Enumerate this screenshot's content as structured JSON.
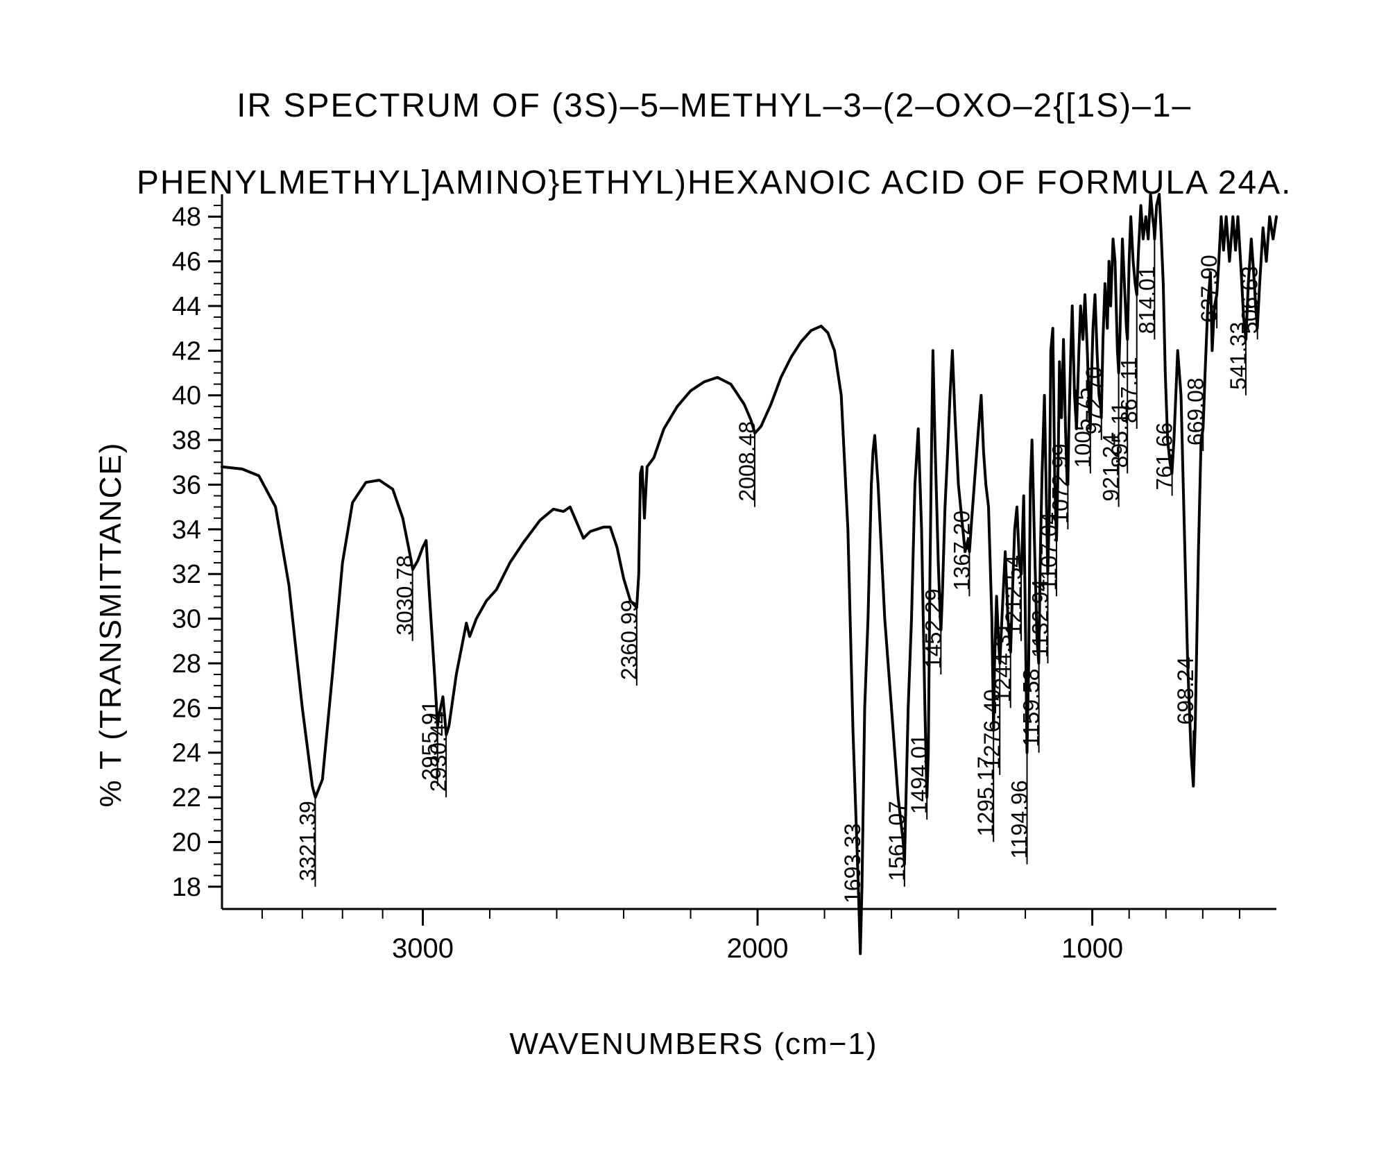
{
  "title_line1": "IR SPECTRUM OF (3S)–5–METHYL–3–(2–OXO–2{[1S)–1–",
  "title_line2": "PHENYLMETHYL]AMINO}ETHYL)HEXANOIC ACID OF FORMULA 24A.",
  "ylabel": "% T (TRANSMITTANCE)",
  "xlabel": "WAVENUMBERS (cm−1)",
  "chart": {
    "type": "line",
    "background_color": "#ffffff",
    "line_color": "#000000",
    "line_width": 4,
    "xlim": [
      3600,
      450
    ],
    "ylim": [
      17,
      49
    ],
    "yticks": [
      18,
      20,
      22,
      24,
      26,
      28,
      30,
      32,
      34,
      36,
      38,
      40,
      42,
      44,
      46,
      48
    ],
    "xticks": [
      3000,
      2000,
      1000
    ],
    "ytick_label_fontsize": 38,
    "xtick_label_fontsize": 40,
    "peak_label_fontsize": 32,
    "minor_tick_count_y": 3,
    "minor_tick_count_x": 4,
    "spectrum": [
      [
        3600,
        36.8
      ],
      [
        3540,
        36.7
      ],
      [
        3490,
        36.4
      ],
      [
        3440,
        35.0
      ],
      [
        3400,
        31.5
      ],
      [
        3360,
        26.0
      ],
      [
        3330,
        22.5
      ],
      [
        3321,
        22.0
      ],
      [
        3300,
        22.8
      ],
      [
        3270,
        27.5
      ],
      [
        3240,
        32.5
      ],
      [
        3210,
        35.2
      ],
      [
        3170,
        36.1
      ],
      [
        3130,
        36.2
      ],
      [
        3090,
        35.8
      ],
      [
        3060,
        34.5
      ],
      [
        3040,
        33.0
      ],
      [
        3030,
        32.2
      ],
      [
        3015,
        32.6
      ],
      [
        3000,
        33.2
      ],
      [
        2990,
        33.5
      ],
      [
        2980,
        31.0
      ],
      [
        2965,
        27.5
      ],
      [
        2956,
        25.2
      ],
      [
        2950,
        25.8
      ],
      [
        2940,
        26.5
      ],
      [
        2930,
        24.8
      ],
      [
        2922,
        25.2
      ],
      [
        2900,
        27.5
      ],
      [
        2870,
        29.8
      ],
      [
        2860,
        29.2
      ],
      [
        2840,
        30.0
      ],
      [
        2810,
        30.8
      ],
      [
        2780,
        31.3
      ],
      [
        2740,
        32.5
      ],
      [
        2700,
        33.4
      ],
      [
        2650,
        34.4
      ],
      [
        2610,
        34.9
      ],
      [
        2580,
        34.8
      ],
      [
        2560,
        35.0
      ],
      [
        2540,
        34.3
      ],
      [
        2520,
        33.6
      ],
      [
        2500,
        33.9
      ],
      [
        2480,
        34.0
      ],
      [
        2460,
        34.1
      ],
      [
        2440,
        34.1
      ],
      [
        2420,
        33.2
      ],
      [
        2400,
        31.8
      ],
      [
        2380,
        30.8
      ],
      [
        2361,
        30.5
      ],
      [
        2355,
        32.0
      ],
      [
        2350,
        36.5
      ],
      [
        2345,
        36.8
      ],
      [
        2338,
        34.5
      ],
      [
        2330,
        36.8
      ],
      [
        2310,
        37.2
      ],
      [
        2280,
        38.5
      ],
      [
        2240,
        39.5
      ],
      [
        2200,
        40.2
      ],
      [
        2160,
        40.6
      ],
      [
        2120,
        40.8
      ],
      [
        2080,
        40.5
      ],
      [
        2040,
        39.6
      ],
      [
        2020,
        38.9
      ],
      [
        2008,
        38.3
      ],
      [
        1990,
        38.6
      ],
      [
        1960,
        39.6
      ],
      [
        1930,
        40.8
      ],
      [
        1900,
        41.7
      ],
      [
        1870,
        42.4
      ],
      [
        1840,
        42.9
      ],
      [
        1810,
        43.1
      ],
      [
        1790,
        42.8
      ],
      [
        1770,
        42.0
      ],
      [
        1750,
        40.0
      ],
      [
        1730,
        34.0
      ],
      [
        1715,
        25.0
      ],
      [
        1700,
        18.5
      ],
      [
        1693,
        15.0
      ],
      [
        1688,
        18.0
      ],
      [
        1680,
        26.0
      ],
      [
        1670,
        30.0
      ],
      [
        1660,
        36.0
      ],
      [
        1655,
        37.5
      ],
      [
        1650,
        38.2
      ],
      [
        1640,
        36.0
      ],
      [
        1620,
        30.0
      ],
      [
        1600,
        26.0
      ],
      [
        1580,
        22.0
      ],
      [
        1565,
        20.0
      ],
      [
        1561,
        19.0
      ],
      [
        1558,
        21.0
      ],
      [
        1550,
        26.0
      ],
      [
        1540,
        30.0
      ],
      [
        1530,
        36.0
      ],
      [
        1520,
        38.5
      ],
      [
        1510,
        34.0
      ],
      [
        1500,
        26.0
      ],
      [
        1494,
        22.0
      ],
      [
        1490,
        24.0
      ],
      [
        1485,
        32.0
      ],
      [
        1480,
        38.0
      ],
      [
        1476,
        42.0
      ],
      [
        1470,
        38.0
      ],
      [
        1460,
        32.5
      ],
      [
        1454,
        30.0
      ],
      [
        1452,
        29.5
      ],
      [
        1448,
        31.0
      ],
      [
        1440,
        35.0
      ],
      [
        1432,
        37.5
      ],
      [
        1425,
        40.0
      ],
      [
        1418,
        42.0
      ],
      [
        1410,
        39.0
      ],
      [
        1400,
        36.0
      ],
      [
        1390,
        34.5
      ],
      [
        1380,
        33.0
      ],
      [
        1372,
        33.5
      ],
      [
        1367,
        33.0
      ],
      [
        1360,
        34.5
      ],
      [
        1350,
        36.5
      ],
      [
        1340,
        38.5
      ],
      [
        1332,
        40.0
      ],
      [
        1325,
        37.5
      ],
      [
        1318,
        36.0
      ],
      [
        1310,
        35.0
      ],
      [
        1300,
        30.0
      ],
      [
        1295,
        25.0
      ],
      [
        1292,
        28.0
      ],
      [
        1286,
        31.0
      ],
      [
        1280,
        29.0
      ],
      [
        1276,
        28.0
      ],
      [
        1270,
        30.0
      ],
      [
        1260,
        33.0
      ],
      [
        1252,
        30.0
      ],
      [
        1244,
        28.5
      ],
      [
        1240,
        30.5
      ],
      [
        1232,
        34.0
      ],
      [
        1225,
        35.0
      ],
      [
        1218,
        32.5
      ],
      [
        1212,
        32.0
      ],
      [
        1205,
        35.5
      ],
      [
        1200,
        30.0
      ],
      [
        1195,
        24.0
      ],
      [
        1190,
        28.0
      ],
      [
        1185,
        36.0
      ],
      [
        1180,
        38.0
      ],
      [
        1172,
        33.0
      ],
      [
        1165,
        29.0
      ],
      [
        1160,
        28.0
      ],
      [
        1155,
        33.0
      ],
      [
        1150,
        36.5
      ],
      [
        1143,
        40.0
      ],
      [
        1138,
        36.0
      ],
      [
        1133,
        32.0
      ],
      [
        1128,
        35.0
      ],
      [
        1124,
        42.0
      ],
      [
        1118,
        43.0
      ],
      [
        1112,
        36.0
      ],
      [
        1107,
        33.5
      ],
      [
        1102,
        37.0
      ],
      [
        1098,
        41.5
      ],
      [
        1092,
        39.0
      ],
      [
        1086,
        42.5
      ],
      [
        1080,
        38.5
      ],
      [
        1075,
        36.0
      ],
      [
        1073,
        36.0
      ],
      [
        1070,
        38.5
      ],
      [
        1064,
        42.0
      ],
      [
        1060,
        44.0
      ],
      [
        1053,
        40.0
      ],
      [
        1047,
        38.5
      ],
      [
        1040,
        42.0
      ],
      [
        1035,
        44.0
      ],
      [
        1028,
        42.5
      ],
      [
        1022,
        44.5
      ],
      [
        1015,
        42.0
      ],
      [
        1008,
        39.0
      ],
      [
        1006,
        38.5
      ],
      [
        1003,
        40.5
      ],
      [
        998,
        43.0
      ],
      [
        992,
        44.5
      ],
      [
        986,
        42.0
      ],
      [
        980,
        40.0
      ],
      [
        975,
        39.5
      ],
      [
        973,
        39.0
      ],
      [
        968,
        42.5
      ],
      [
        962,
        45.0
      ],
      [
        955,
        43.0
      ],
      [
        950,
        46.0
      ],
      [
        945,
        44.0
      ],
      [
        938,
        47.0
      ],
      [
        932,
        46.0
      ],
      [
        925,
        42.0
      ],
      [
        921,
        41.0
      ],
      [
        917,
        43.0
      ],
      [
        910,
        47.0
      ],
      [
        904,
        45.0
      ],
      [
        898,
        43.0
      ],
      [
        895,
        42.5
      ],
      [
        890,
        46.0
      ],
      [
        885,
        48.0
      ],
      [
        878,
        46.0
      ],
      [
        872,
        45.0
      ],
      [
        867,
        44.5
      ],
      [
        862,
        46.5
      ],
      [
        855,
        48.5
      ],
      [
        848,
        47.0
      ],
      [
        840,
        48.0
      ],
      [
        833,
        47.0
      ],
      [
        826,
        49.0
      ],
      [
        820,
        48.0
      ],
      [
        816,
        47.5
      ],
      [
        814,
        47.0
      ],
      [
        808,
        48.5
      ],
      [
        800,
        49.0
      ],
      [
        795,
        47.5
      ],
      [
        788,
        45.0
      ],
      [
        782,
        41.0
      ],
      [
        775,
        38.0
      ],
      [
        768,
        37.0
      ],
      [
        762,
        36.5
      ],
      [
        756,
        38.0
      ],
      [
        745,
        42.0
      ],
      [
        735,
        40.0
      ],
      [
        725,
        34.0
      ],
      [
        715,
        28.0
      ],
      [
        705,
        24.0
      ],
      [
        698,
        22.5
      ],
      [
        692,
        25.5
      ],
      [
        683,
        33.0
      ],
      [
        675,
        38.0
      ],
      [
        669,
        38.5
      ],
      [
        663,
        41.0
      ],
      [
        655,
        44.0
      ],
      [
        647,
        45.5
      ],
      [
        642,
        42.0
      ],
      [
        635,
        44.0
      ],
      [
        628,
        44.5
      ],
      [
        622,
        46.0
      ],
      [
        615,
        48.0
      ],
      [
        608,
        46.5
      ],
      [
        600,
        48.0
      ],
      [
        590,
        46.0
      ],
      [
        580,
        48.0
      ],
      [
        572,
        46.5
      ],
      [
        565,
        48.0
      ],
      [
        555,
        45.5
      ],
      [
        548,
        43.5
      ],
      [
        541,
        42.5
      ],
      [
        534,
        45.0
      ],
      [
        525,
        47.0
      ],
      [
        518,
        45.5
      ],
      [
        512,
        44.0
      ],
      [
        507,
        43.0
      ],
      [
        500,
        45.0
      ],
      [
        490,
        47.5
      ],
      [
        480,
        46.0
      ],
      [
        470,
        48.0
      ],
      [
        460,
        47.0
      ],
      [
        450,
        48.0
      ]
    ],
    "peak_labels": [
      {
        "wn": 3321.39,
        "y": 22.0,
        "drop": 18.0
      },
      {
        "wn": 3030.78,
        "y": 32.2,
        "drop": 29.0
      },
      {
        "wn": 2955.91,
        "y": 25.2,
        "drop": 22.5
      },
      {
        "wn": 2930.44,
        "y": 24.8,
        "drop": 22.0
      },
      {
        "wn": 2360.99,
        "y": 30.5,
        "drop": 27.0
      },
      {
        "wn": 2008.48,
        "y": 38.3,
        "drop": 35.0
      },
      {
        "wn": 1693.33,
        "y": 15.0,
        "drop": 17.0
      },
      {
        "wn": 1561.07,
        "y": 19.0,
        "drop": 18.0
      },
      {
        "wn": 1494.01,
        "y": 22.0,
        "drop": 21.0
      },
      {
        "wn": 1452.29,
        "y": 29.5,
        "drop": 27.5
      },
      {
        "wn": 1367.2,
        "y": 33.0,
        "drop": 31.0
      },
      {
        "wn": 1295.17,
        "y": 25.0,
        "drop": 20.0
      },
      {
        "wn": 1276.4,
        "y": 28.0,
        "drop": 23.0
      },
      {
        "wn": 1244.31,
        "y": 28.5,
        "drop": 26.0
      },
      {
        "wn": 1212.54,
        "y": 32.0,
        "drop": 29.0
      },
      {
        "wn": 1194.96,
        "y": 24.0,
        "drop": 19.0
      },
      {
        "wn": 1159.58,
        "y": 28.0,
        "drop": 24.0
      },
      {
        "wn": 1132.94,
        "y": 32.0,
        "drop": 28.0
      },
      {
        "wn": 1107.04,
        "y": 33.5,
        "drop": 31.0
      },
      {
        "wn": 1072.99,
        "y": 36.0,
        "drop": 34.0
      },
      {
        "wn": 1005.75,
        "y": 38.5,
        "drop": 36.5
      },
      {
        "wn": 972.7,
        "y": 39.0,
        "drop": 38.0
      },
      {
        "wn": 921.24,
        "y": 41.0,
        "drop": 35.0
      },
      {
        "wn": 895.11,
        "y": 42.5,
        "drop": 36.5
      },
      {
        "wn": 867.11,
        "y": 44.5,
        "drop": 38.5
      },
      {
        "wn": 814.01,
        "y": 47.0,
        "drop": 42.5
      },
      {
        "wn": 761.66,
        "y": 36.5,
        "drop": 35.5
      },
      {
        "wn": 698.24,
        "y": 22.5,
        "drop": 25.0
      },
      {
        "wn": 669.08,
        "y": 38.5,
        "drop": 37.5
      },
      {
        "wn": 627.9,
        "y": 44.5,
        "drop": 43.0
      },
      {
        "wn": 541.33,
        "y": 42.5,
        "drop": 40.0
      },
      {
        "wn": 506.63,
        "y": 43.0,
        "drop": 42.5
      }
    ]
  }
}
